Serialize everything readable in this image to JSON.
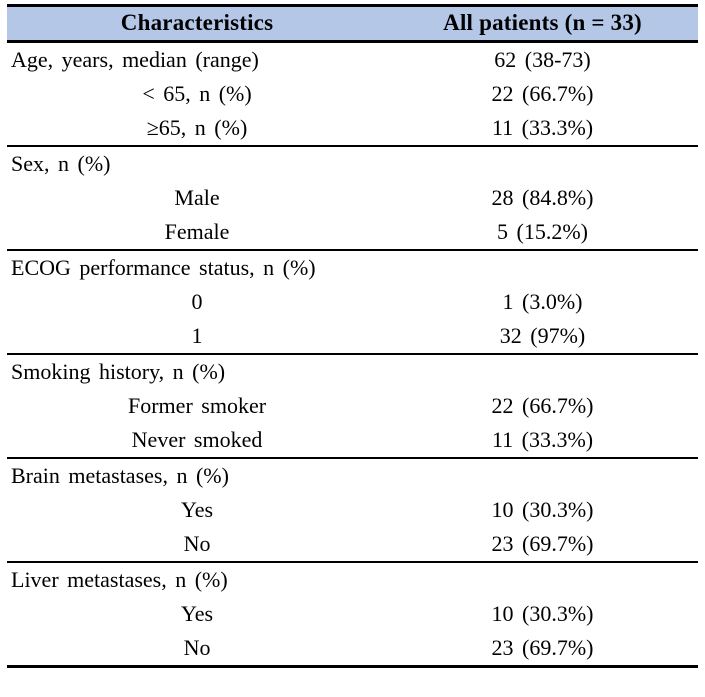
{
  "table": {
    "title": "patient-characteristics-table",
    "header": {
      "col1": "Characteristics",
      "col2": "All patients (n = 33)"
    },
    "header_bg": "#b4c7e7",
    "border_color": "#000000",
    "sections": [
      {
        "label": "Age, years, median (range)",
        "value": "62 (38-73)",
        "items": [
          {
            "label": "< 65, n (%)",
            "value": "22 (66.7%)"
          },
          {
            "label": "≥65, n (%)",
            "value": "11 (33.3%)"
          }
        ]
      },
      {
        "label": "Sex, n (%)",
        "value": "",
        "items": [
          {
            "label": "Male",
            "value": "28 (84.8%)"
          },
          {
            "label": "Female",
            "value": "5 (15.2%)"
          }
        ]
      },
      {
        "label": "ECOG performance status, n (%)",
        "value": "",
        "items": [
          {
            "label": "0",
            "value": "1 (3.0%)"
          },
          {
            "label": "1",
            "value": "32 (97%)"
          }
        ]
      },
      {
        "label": "Smoking history, n (%)",
        "value": "",
        "items": [
          {
            "label": "Former smoker",
            "value": "22 (66.7%)"
          },
          {
            "label": "Never smoked",
            "value": "11 (33.3%)"
          }
        ]
      },
      {
        "label": "Brain metastases, n (%)",
        "value": "",
        "items": [
          {
            "label": "Yes",
            "value": "10 (30.3%)"
          },
          {
            "label": "No",
            "value": "23 (69.7%)"
          }
        ]
      },
      {
        "label": "Liver metastases, n (%)",
        "value": "",
        "items": [
          {
            "label": "Yes",
            "value": "10 (30.3%)"
          },
          {
            "label": "No",
            "value": "23 (69.7%)"
          }
        ]
      }
    ]
  },
  "chart_data": {
    "type": "table",
    "title": "Patient characteristics",
    "columns": [
      "Characteristics",
      "All patients (n = 33)"
    ],
    "rows": [
      [
        "Age, years, median (range)",
        "62 (38-73)"
      ],
      [
        "< 65, n (%)",
        "22 (66.7%)"
      ],
      [
        "≥65, n (%)",
        "11 (33.3%)"
      ],
      [
        "Sex, n (%)",
        ""
      ],
      [
        "Male",
        "28 (84.8%)"
      ],
      [
        "Female",
        "5 (15.2%)"
      ],
      [
        "ECOG performance status, n (%)",
        ""
      ],
      [
        "0",
        "1 (3.0%)"
      ],
      [
        "1",
        "32 (97%)"
      ],
      [
        "Smoking history, n (%)",
        ""
      ],
      [
        "Former smoker",
        "22 (66.7%)"
      ],
      [
        "Never smoked",
        "11 (33.3%)"
      ],
      [
        "Brain metastases, n (%)",
        ""
      ],
      [
        "Yes",
        "10 (30.3%)"
      ],
      [
        "No",
        "23 (69.7%)"
      ],
      [
        "Liver metastases, n (%)",
        ""
      ],
      [
        "Yes",
        "10 (30.3%)"
      ],
      [
        "No",
        "23 (69.7%)"
      ]
    ]
  }
}
